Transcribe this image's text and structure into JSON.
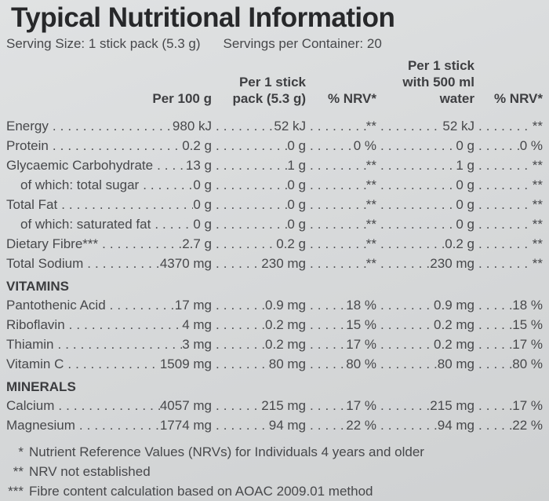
{
  "title": "Typical Nutritional Information",
  "serving": {
    "size": "Serving Size: 1 stick pack (5.3 g)",
    "per_container": "Servings per Container: 20"
  },
  "header": {
    "col_per100": "Per 100 g",
    "col_pack": [
      "Per 1 stick",
      "pack (5.3 g)"
    ],
    "col_nrv1": "% NRV*",
    "col_water": [
      "Per 1 stick",
      "with 500 ml",
      "water"
    ],
    "col_nrv2": "% NRV*"
  },
  "table": {
    "rows": [
      {
        "type": "item",
        "label": "Energy",
        "indent": false,
        "values": [
          "980 kJ",
          "52 kJ",
          "**",
          "52 kJ",
          "**"
        ]
      },
      {
        "type": "item",
        "label": "Protein",
        "indent": false,
        "values": [
          "0.2 g",
          "0 g",
          "0 %",
          "0 g",
          "0 %"
        ]
      },
      {
        "type": "item",
        "label": "Glycaemic Carbohydrate",
        "indent": false,
        "values": [
          "13 g",
          "1 g",
          "**",
          "1 g",
          "**"
        ]
      },
      {
        "type": "item",
        "label": "of which: total sugar",
        "indent": true,
        "values": [
          "0 g",
          "0 g",
          "**",
          "0 g",
          "**"
        ]
      },
      {
        "type": "item",
        "label": "Total Fat",
        "indent": false,
        "values": [
          "0 g",
          "0 g",
          "**",
          "0 g",
          "**"
        ]
      },
      {
        "type": "item",
        "label": "of which: saturated fat",
        "indent": true,
        "values": [
          "0 g",
          "0 g",
          "**",
          "0 g",
          "**"
        ]
      },
      {
        "type": "item",
        "label": "Dietary Fibre***",
        "indent": false,
        "values": [
          "2.7 g",
          "0.2 g",
          "**",
          "0.2 g",
          "**"
        ]
      },
      {
        "type": "item",
        "label": "Total Sodium",
        "indent": false,
        "values": [
          "4370 mg",
          "230 mg",
          "**",
          "230 mg",
          "**"
        ]
      },
      {
        "type": "section",
        "label": "VITAMINS"
      },
      {
        "type": "item",
        "label": "Pantothenic Acid",
        "indent": false,
        "values": [
          "17 mg",
          "0.9 mg",
          "18 %",
          "0.9 mg",
          "18 %"
        ]
      },
      {
        "type": "item",
        "label": "Riboflavin",
        "indent": false,
        "values": [
          "4 mg",
          "0.2 mg",
          "15 %",
          "0.2 mg",
          "15 %"
        ]
      },
      {
        "type": "item",
        "label": "Thiamin",
        "indent": false,
        "values": [
          "3 mg",
          "0.2 mg",
          "17 %",
          "0.2 mg",
          "17 %"
        ]
      },
      {
        "type": "item",
        "label": "Vitamin C",
        "indent": false,
        "values": [
          "1509 mg",
          "80 mg",
          "80 %",
          "80 mg",
          "80 %"
        ]
      },
      {
        "type": "section",
        "label": "MINERALS"
      },
      {
        "type": "item",
        "label": "Calcium",
        "indent": false,
        "values": [
          "4057 mg",
          "215 mg",
          "17 %",
          "215 mg",
          "17 %"
        ]
      },
      {
        "type": "item",
        "label": "Magnesium",
        "indent": false,
        "values": [
          "1774 mg",
          "94 mg",
          "22 %",
          "94 mg",
          "22 %"
        ]
      }
    ]
  },
  "footnotes": [
    {
      "marker": "*",
      "text": "Nutrient Reference Values (NRVs) for Individuals 4 years and older"
    },
    {
      "marker": "**",
      "text": "NRV not established"
    },
    {
      "marker": "***",
      "text": "Fibre content calculation based on AOAC 2009.01 method"
    }
  ],
  "colors": {
    "background": "#d8dadb",
    "title_text": "#27282a",
    "body_text": "#47484b"
  }
}
